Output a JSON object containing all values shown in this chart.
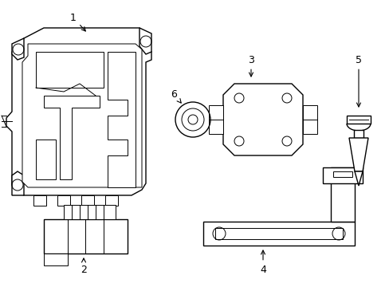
{
  "bg_color": "#ffffff",
  "line_color": "#000000",
  "lw": 1.0,
  "tlw": 0.7
}
